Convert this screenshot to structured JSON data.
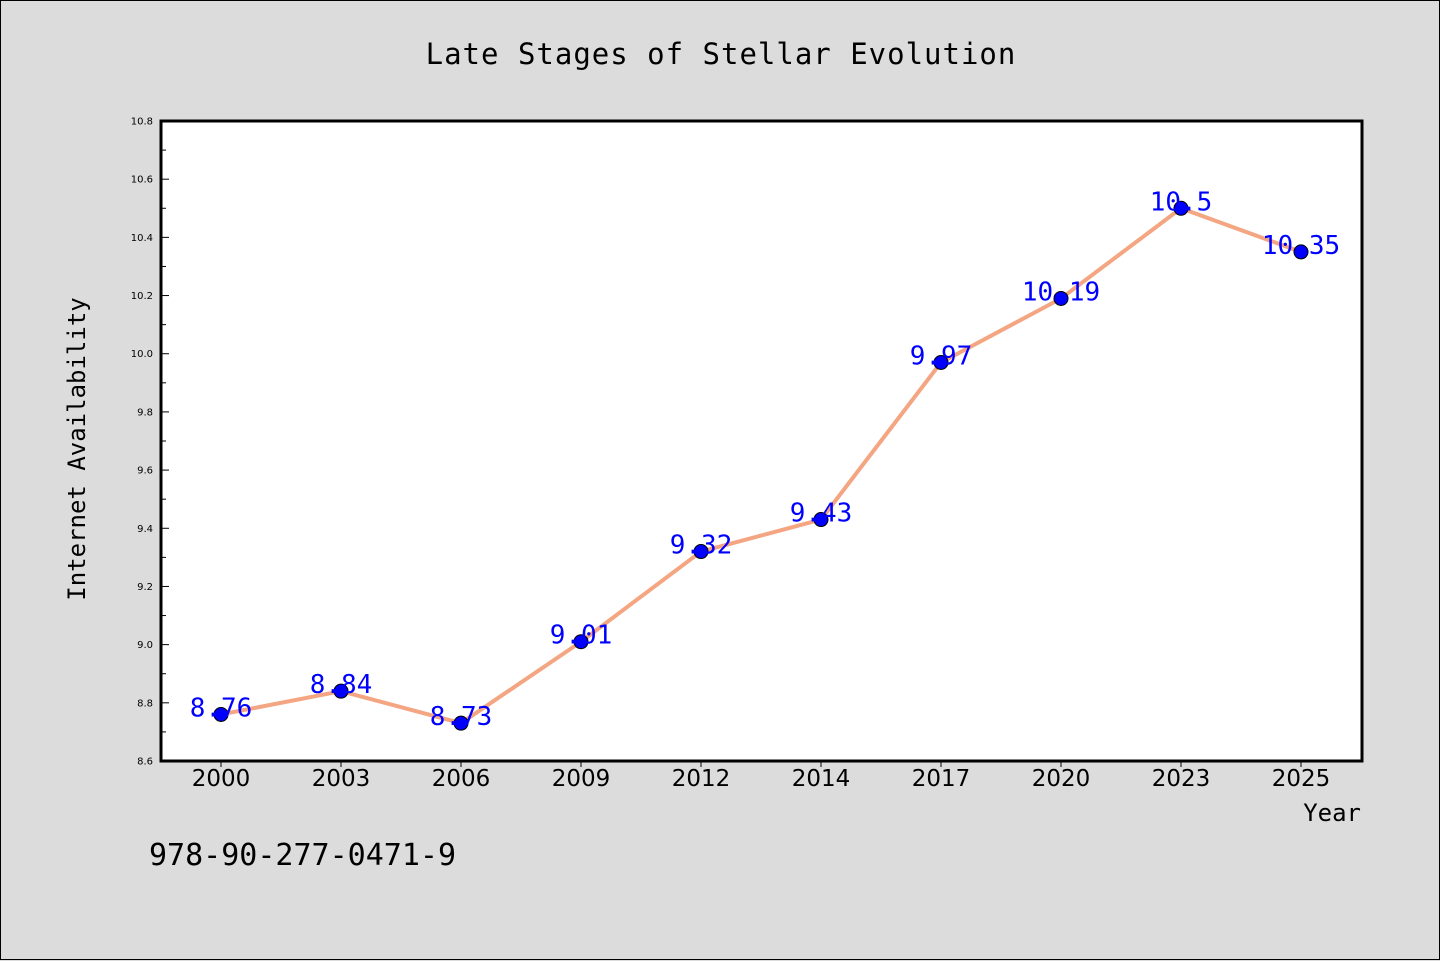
{
  "chart_data": {
    "type": "line",
    "title": "Late Stages of Stellar Evolution",
    "xlabel": "Year",
    "ylabel": "Internet Availability",
    "categories": [
      "2000",
      "2003",
      "2006",
      "2009",
      "2012",
      "2014",
      "2017",
      "2020",
      "2023",
      "2025"
    ],
    "series": [
      {
        "values": [
          8.76,
          8.84,
          8.73,
          9.01,
          9.32,
          9.43,
          9.97,
          10.19,
          10.5,
          10.35
        ],
        "data_labels": [
          "8.76",
          "8.84",
          "8.73",
          "9.01",
          "9.32",
          "9.43",
          "9.97",
          "10.19",
          "10.5",
          "10.35"
        ],
        "line_color": "#f4a582",
        "marker_color": "#0000ff",
        "label_color": "#0000ff"
      }
    ],
    "ylim": [
      8.6,
      10.8
    ],
    "yticks": [
      "8.6",
      "8.8",
      "9.0",
      "9.2",
      "9.4",
      "9.6",
      "9.8",
      "10.0",
      "10.2",
      "10.4",
      "10.6",
      "10.8"
    ],
    "grid": false,
    "legend": "none",
    "background_color": "#dcdcdc",
    "plot_background_color": "#ffffff"
  },
  "footnote": "978-90-277-0471-9"
}
